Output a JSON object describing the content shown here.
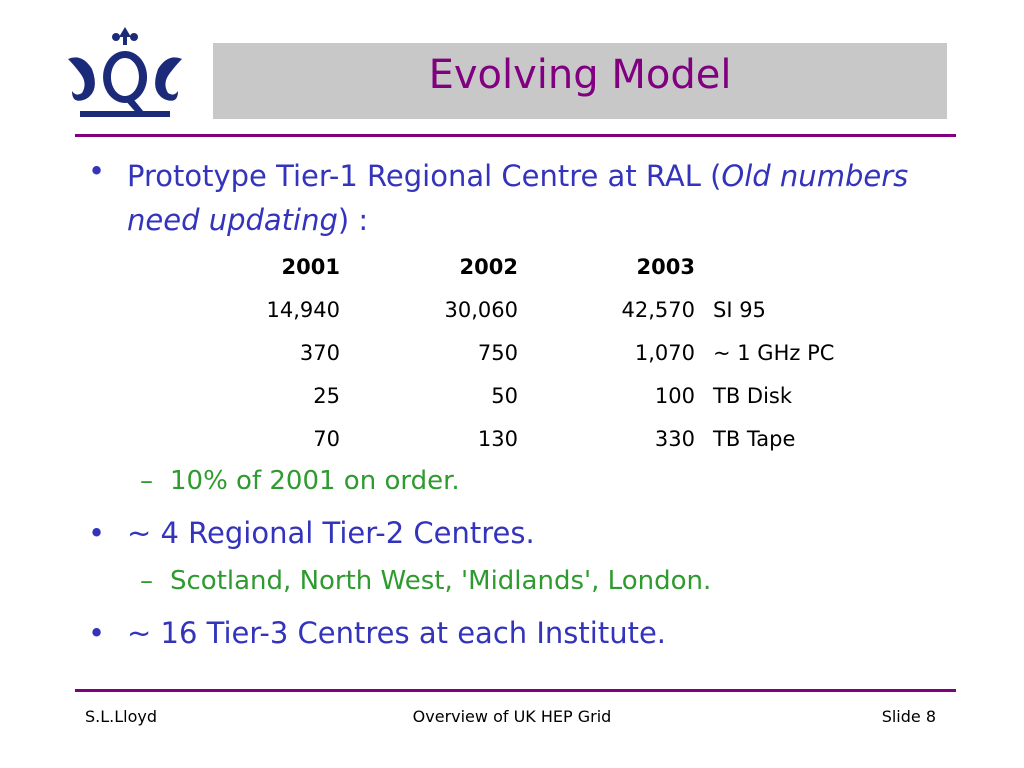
{
  "header": {
    "title": "Evolving Model"
  },
  "bullets": [
    {
      "parts": [
        "Prototype Tier-1 Regional Centre at RAL (",
        "Old numbers need updating",
        ") :"
      ]
    },
    {
      "text": "~ 4 Regional Tier-2 Centres."
    },
    {
      "text": "~ 16 Tier-3 Centres at each Institute."
    }
  ],
  "sub_bullets": [
    "10% of 2001 on order.",
    "Scotland, North West, 'Midlands', London."
  ],
  "table": {
    "header": [
      "2001",
      "2002",
      "2003"
    ],
    "rows": [
      [
        "14,940",
        "30,060",
        "42,570",
        "SI 95"
      ],
      [
        "370",
        "750",
        "1,070",
        "~ 1 GHz PC"
      ],
      [
        "25",
        "50",
        "100",
        "TB Disk"
      ],
      [
        "70",
        "130",
        "330",
        "TB Tape"
      ]
    ]
  },
  "footer": {
    "left": "S.L.Lloyd",
    "center": "Overview of UK HEP Grid",
    "right": "Slide 8"
  }
}
